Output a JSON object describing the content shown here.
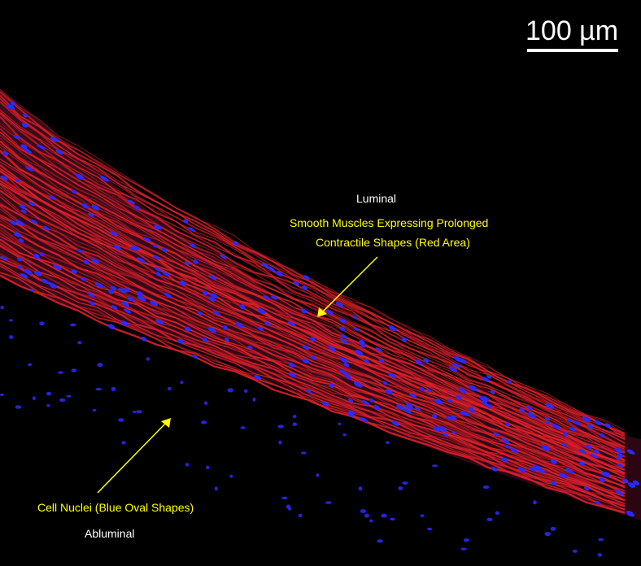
{
  "scale_bar": {
    "label": "100 µm",
    "bar_color": "#ffffff"
  },
  "labels": {
    "luminal": "Luminal",
    "smooth_muscle_line1": "Smooth Muscles Expressing Prolonged",
    "smooth_muscle_line2": "Contractile Shapes (Red Area)",
    "cell_nuclei": "Cell Nuclei (Blue Oval Shapes)",
    "abluminal": "Abluminal"
  },
  "colors": {
    "background": "#000000",
    "muscle_red": "#e0202a",
    "nuclei_blue": "#2a2aff",
    "annotation_yellow": "#ffff00",
    "label_white": "#ffffff"
  }
}
